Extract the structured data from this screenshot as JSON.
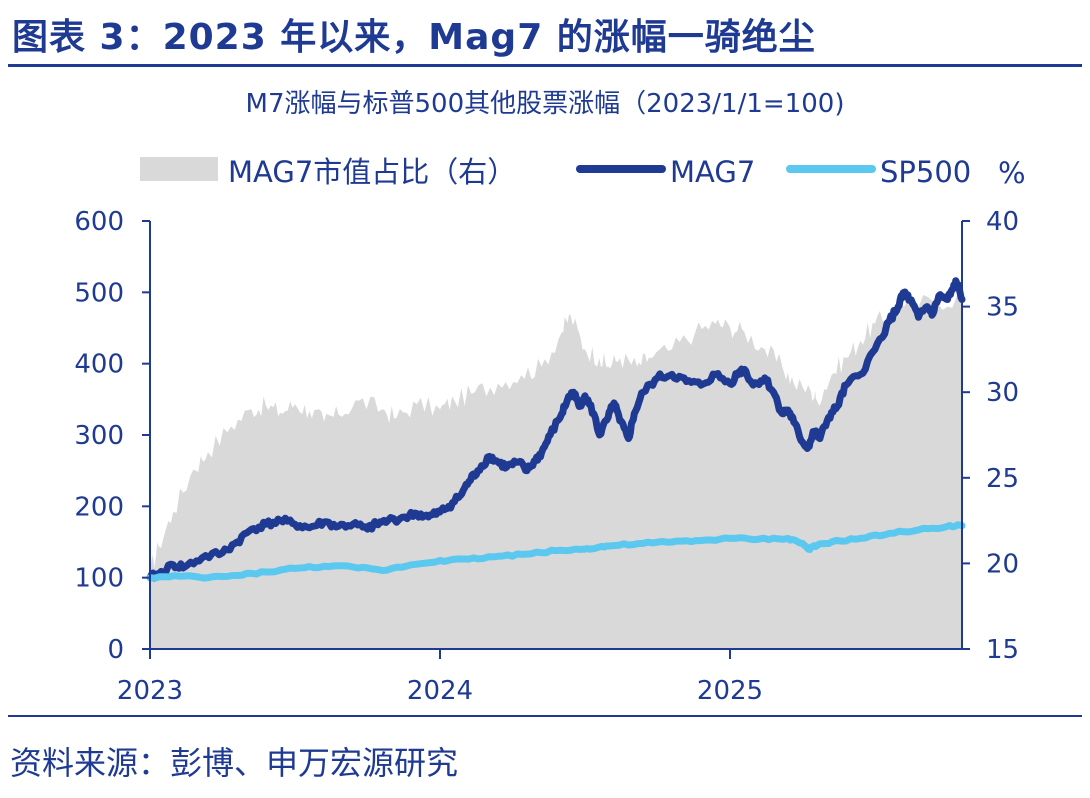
{
  "figure": {
    "title": "图表 3：2023 年以来，Mag7 的涨幅一骑绝尘",
    "source": "资料来源：彭博、申万宏源研究"
  },
  "chart_data": {
    "type": "line",
    "title": "M7涨幅与标普500其他股票涨幅（2023/1/1=100)",
    "right_axis_unit": "%",
    "x_ticks": [
      "2023",
      "2024",
      "2025"
    ],
    "x_range": [
      2023.0,
      2025.8
    ],
    "y_left": {
      "ticks": [
        0,
        100,
        200,
        300,
        400,
        500,
        600
      ],
      "range": [
        0,
        600
      ]
    },
    "y_right": {
      "ticks": [
        15,
        20,
        25,
        30,
        35,
        40
      ],
      "range": [
        15,
        40
      ]
    },
    "legend": [
      "MAG7市值占比（右）",
      "MAG7",
      "SP500"
    ],
    "colors": {
      "area": "#d9d9d9",
      "mag7": "#1f3a93",
      "sp500": "#5bc8f0",
      "text": "#1f3a93"
    },
    "series": [
      {
        "name": "MAG7市值占比（右）",
        "type": "area",
        "axis": "right",
        "x": [
          2023.0,
          2023.03,
          2023.08,
          2023.15,
          2023.2,
          2023.28,
          2023.35,
          2023.4,
          2023.45,
          2023.5,
          2023.55,
          2023.6,
          2023.65,
          2023.72,
          2023.8,
          2023.85,
          2023.92,
          2024.0,
          2024.05,
          2024.12,
          2024.2,
          2024.28,
          2024.35,
          2024.42,
          2024.45,
          2024.5,
          2024.55,
          2024.58,
          2024.62,
          2024.68,
          2024.72,
          2024.8,
          2024.88,
          2024.95,
          2025.0,
          2025.05,
          2025.12,
          2025.18,
          2025.22,
          2025.28,
          2025.3,
          2025.35,
          2025.4,
          2025.45,
          2025.5,
          2025.55,
          2025.6,
          2025.7,
          2025.8
        ],
        "values": [
          19.5,
          21.0,
          23.0,
          25.5,
          26.5,
          28.0,
          29.0,
          29.2,
          28.8,
          29.3,
          28.9,
          28.3,
          28.7,
          29.5,
          29.0,
          28.5,
          29.3,
          29.0,
          29.5,
          30.0,
          30.5,
          31.0,
          31.5,
          33.5,
          34.5,
          32.5,
          32.0,
          31.5,
          32.0,
          31.5,
          32.0,
          32.5,
          33.5,
          34.0,
          33.8,
          33.5,
          32.5,
          31.5,
          30.5,
          30.0,
          29.5,
          31.0,
          32.0,
          33.0,
          34.0,
          34.5,
          35.0,
          35.3,
          35.5
        ]
      },
      {
        "name": "MAG7",
        "type": "line",
        "axis": "left",
        "x": [
          2023.0,
          2023.03,
          2023.08,
          2023.12,
          2023.18,
          2023.25,
          2023.3,
          2023.35,
          2023.4,
          2023.45,
          2023.5,
          2023.55,
          2023.6,
          2023.65,
          2023.7,
          2023.75,
          2023.78,
          2023.82,
          2023.88,
          2023.92,
          2023.96,
          2024.0,
          2024.03,
          2024.07,
          2024.1,
          2024.13,
          2024.17,
          2024.2,
          2024.23,
          2024.27,
          2024.3,
          2024.33,
          2024.35,
          2024.38,
          2024.42,
          2024.44,
          2024.46,
          2024.48,
          2024.5,
          2024.53,
          2024.55,
          2024.58,
          2024.6,
          2024.62,
          2024.65,
          2024.67,
          2024.7,
          2024.75,
          2024.8,
          2024.85,
          2024.9,
          2024.95,
          2025.0,
          2025.03,
          2025.05,
          2025.08,
          2025.12,
          2025.15,
          2025.18,
          2025.2,
          2025.22,
          2025.25,
          2025.27,
          2025.29,
          2025.31,
          2025.34,
          2025.37,
          2025.4,
          2025.45,
          2025.5,
          2025.55,
          2025.58,
          2025.6,
          2025.62,
          2025.65,
          2025.68,
          2025.7,
          2025.72,
          2025.75,
          2025.77,
          2025.78,
          2025.8
        ],
        "values": [
          100,
          105,
          118,
          115,
          128,
          135,
          150,
          168,
          175,
          180,
          175,
          170,
          178,
          172,
          175,
          168,
          175,
          180,
          185,
          190,
          185,
          192,
          200,
          215,
          235,
          250,
          270,
          262,
          255,
          262,
          250,
          265,
          275,
          300,
          330,
          350,
          360,
          340,
          355,
          330,
          300,
          325,
          345,
          320,
          295,
          330,
          360,
          380,
          385,
          375,
          370,
          385,
          372,
          388,
          392,
          370,
          380,
          360,
          330,
          335,
          318,
          290,
          283,
          305,
          295,
          325,
          340,
          370,
          385,
          420,
          460,
          480,
          500,
          490,
          465,
          480,
          470,
          495,
          490,
          505,
          515,
          490
        ]
      },
      {
        "name": "SP500",
        "type": "line",
        "axis": "left",
        "x": [
          2023.0,
          2023.1,
          2023.2,
          2023.3,
          2023.4,
          2023.5,
          2023.6,
          2023.7,
          2023.8,
          2023.9,
          2024.0,
          2024.1,
          2024.2,
          2024.3,
          2024.4,
          2024.5,
          2024.55,
          2024.6,
          2024.7,
          2024.8,
          2024.9,
          2025.0,
          2025.1,
          2025.2,
          2025.25,
          2025.27,
          2025.3,
          2025.35,
          2025.45,
          2025.55,
          2025.65,
          2025.75,
          2025.8
        ],
        "values": [
          100,
          102,
          100,
          103,
          108,
          113,
          116,
          115,
          110,
          118,
          124,
          126,
          130,
          133,
          138,
          140,
          143,
          145,
          148,
          150,
          152,
          155,
          154,
          155,
          148,
          140,
          145,
          150,
          155,
          162,
          167,
          172,
          173
        ]
      }
    ]
  }
}
